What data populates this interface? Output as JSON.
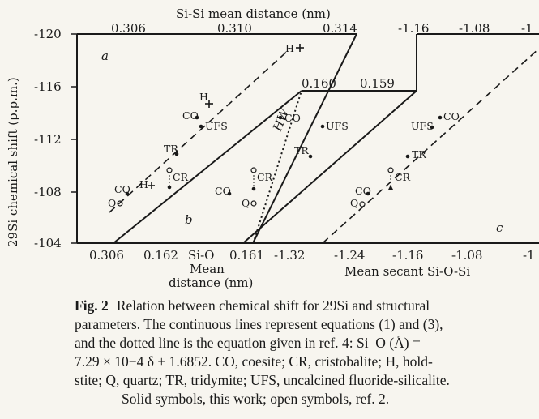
{
  "figure": {
    "top_axis_title": "Si-Si mean distance (nm)",
    "y_axis_title": "29Si chemical shift (p.p.m.)",
    "panel_labels": [
      "a",
      "b",
      "c"
    ],
    "hw_label": "HW",
    "y_ticks": [
      "-120",
      "-116",
      "-112",
      "-108",
      "-104"
    ],
    "top_ticks_a": [
      "0.306",
      "0.310",
      "0.314"
    ],
    "top_ticks_c": [
      "-1.16",
      "-1.08",
      "-1"
    ],
    "mid_ticks_b": [
      "0.160",
      "0.159"
    ],
    "bottom_ticks_a": [
      "0.306"
    ],
    "bottom_ticks_b": [
      "0.162",
      "0.161"
    ],
    "bottom_ticks_c": [
      "-1.32",
      "-1.24",
      "-1.16",
      "-1.08",
      "-1"
    ],
    "b_axis_title": [
      "Si-O",
      "Mean",
      "distance (nm)"
    ],
    "c_axis_title": "Mean secant Si-O-Si",
    "point_labels": {
      "H": "H",
      "CO": "CO",
      "UFS": "UFS",
      "TR": "TR",
      "CR": "CR",
      "Q": "Q"
    }
  },
  "caption": {
    "fig_label": "Fig. 2",
    "lines": [
      "Relation between chemical shift for 29Si and structural",
      "parameters. The continuous lines represent equations (1) and (3),",
      "and the dotted line is the equation given in ref. 4: Si–O (Å) =",
      "7.29 × 10−4 δ + 1.6852. CO, coesite; CR, cristobalite; H, hold-",
      "stite; Q, quartz; TR, tridymite; UFS, uncalcined fluoride-silicalite.",
      "Solid symbols, this work; open symbols, ref. 2."
    ]
  }
}
